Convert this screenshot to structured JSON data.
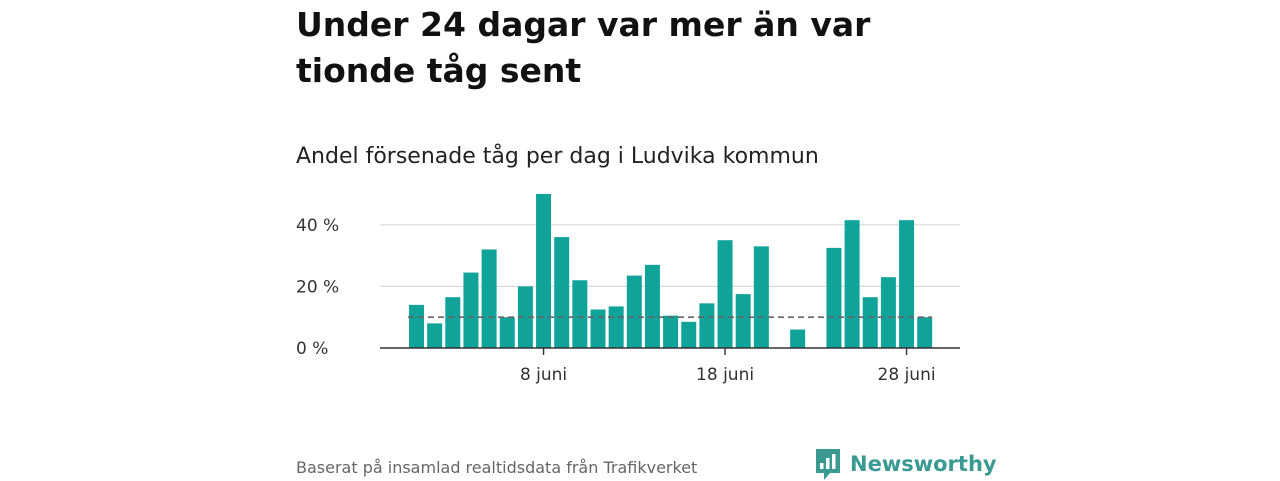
{
  "title": "Under 24 dagar var mer än var tionde tåg sent",
  "subtitle": "Andel försenade tåg per dag i Ludvika kommun",
  "footer": {
    "source": "Baserat på insamlad realtidsdata från Trafikverket",
    "brand": "Newsworthy"
  },
  "colors": {
    "bar": "#10a399",
    "grid": "#d9d9d9",
    "axis": "#333333",
    "reference": "#666666",
    "brand": "#3a9a92"
  },
  "chart_data": {
    "type": "bar",
    "title": "Andel försenade tåg per dag i Ludvika kommun",
    "xlabel": "",
    "ylabel": "",
    "x": [
      "1 juni",
      "2 juni",
      "3 juni",
      "4 juni",
      "5 juni",
      "6 juni",
      "7 juni",
      "8 juni",
      "9 juni",
      "10 juni",
      "11 juni",
      "12 juni",
      "13 juni",
      "14 juni",
      "15 juni",
      "16 juni",
      "17 juni",
      "18 juni",
      "19 juni",
      "20 juni",
      "21 juni",
      "22 juni",
      "23 juni",
      "24 juni",
      "25 juni",
      "26 juni",
      "27 juni",
      "28 juni",
      "29 juni"
    ],
    "values": [
      14,
      8,
      16.5,
      24.5,
      32,
      10,
      20,
      50,
      36,
      22,
      12.5,
      13.5,
      23.5,
      27,
      10.5,
      8.5,
      14.5,
      35,
      17.5,
      33,
      null,
      6,
      null,
      32.5,
      41.5,
      16.5,
      23,
      41.5,
      10
    ],
    "reference_line": 10,
    "ylim": [
      0,
      50
    ],
    "yticks": [
      0,
      20,
      40
    ],
    "ytick_labels": [
      "0 %",
      "20 %",
      "40 %"
    ],
    "xticks": [
      "8 juni",
      "18 juni",
      "28 juni"
    ],
    "grid": true,
    "legend": "none"
  }
}
